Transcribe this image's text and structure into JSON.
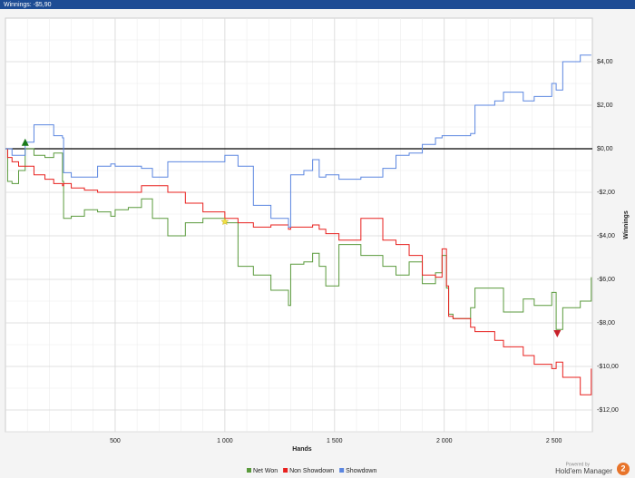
{
  "window_title": "Winnings: -$5,90",
  "chart_data": {
    "type": "line",
    "step": true,
    "zero_line": true,
    "grid": true,
    "xlabel": "Hands",
    "ylabel": "Winnings",
    "xlim": [
      0,
      2675
    ],
    "ylim": [
      -13,
      6
    ],
    "xticks": [
      500,
      {
        "value": 1000,
        "label": "1 000"
      },
      {
        "value": 1500,
        "label": "1 500"
      },
      {
        "value": 2000,
        "label": "2 000"
      },
      {
        "value": 2500,
        "label": "2 500"
      }
    ],
    "yticks": [
      {
        "value": 4,
        "label": "$4,00"
      },
      {
        "value": 2,
        "label": "$2,00"
      },
      {
        "value": 0,
        "label": "$0,00"
      },
      {
        "value": -2,
        "label": "-$2,00"
      },
      {
        "value": -4,
        "label": "-$4,00"
      },
      {
        "value": -6,
        "label": "-$6,00"
      },
      {
        "value": -8,
        "label": "-$8,00"
      },
      {
        "value": -10,
        "label": "-$10,00"
      },
      {
        "value": -12,
        "label": "-$12,00"
      }
    ],
    "x_minor_ticks": [
      100,
      200,
      300,
      400,
      500,
      600,
      700,
      800,
      900,
      1000,
      1100,
      1200,
      1300,
      1400,
      1500,
      1600,
      1700,
      1800,
      1900,
      2000,
      2100,
      2200,
      2300,
      2400,
      2500,
      2600
    ],
    "y_minor_ticks": [
      -13,
      -12,
      -11,
      -10,
      -9,
      -8,
      -7,
      -6,
      -5,
      -4,
      -3,
      -2,
      -1,
      1,
      2,
      3,
      4,
      5
    ],
    "x": [
      0,
      10,
      30,
      60,
      90,
      130,
      180,
      220,
      260,
      265,
      300,
      360,
      420,
      480,
      500,
      560,
      620,
      670,
      740,
      820,
      900,
      1000,
      1060,
      1130,
      1210,
      1290,
      1300,
      1360,
      1400,
      1430,
      1460,
      1520,
      1620,
      1720,
      1780,
      1840,
      1900,
      1960,
      1990,
      2010,
      2020,
      2040,
      2120,
      2140,
      2230,
      2270,
      2360,
      2410,
      2490,
      2510,
      2540,
      2620,
      2670
    ],
    "series": [
      {
        "name": "Net Won",
        "color": "#5a9a3c",
        "values": [
          0,
          -1.5,
          -1.6,
          -1,
          0,
          -0.3,
          -0.4,
          -0.2,
          -1.5,
          -3.2,
          -3.1,
          -2.8,
          -2.9,
          -3.1,
          -2.8,
          -2.7,
          -2.3,
          -3.2,
          -4,
          -3.4,
          -3.2,
          -3.4,
          -5.4,
          -5.8,
          -6.5,
          -7.2,
          -5.3,
          -5.2,
          -4.8,
          -5.4,
          -6.3,
          -4.4,
          -4.9,
          -5.4,
          -5.8,
          -5.2,
          -6.2,
          -5.7,
          -4.9,
          -6.4,
          -7.6,
          -7.8,
          -7.3,
          -6.4,
          -6.4,
          -7.5,
          -6.9,
          -7.2,
          -6.6,
          -8.3,
          -7.3,
          -7.0,
          -5.9
        ]
      },
      {
        "name": "Non Showdown",
        "color": "#e8201e",
        "values": [
          0,
          -0.4,
          -0.6,
          -0.8,
          -0.8,
          -1.2,
          -1.4,
          -1.6,
          -1.7,
          -1.6,
          -1.8,
          -1.9,
          -2.0,
          -2.0,
          -2.0,
          -2.0,
          -1.7,
          -1.7,
          -2.0,
          -2.5,
          -2.9,
          -3.2,
          -3.4,
          -3.6,
          -3.5,
          -3.7,
          -3.6,
          -3.6,
          -3.5,
          -3.7,
          -3.9,
          -4.2,
          -3.2,
          -4.2,
          -4.4,
          -4.9,
          -5.8,
          -5.9,
          -4.6,
          -6.3,
          -7.7,
          -7.8,
          -8.2,
          -8.4,
          -8.8,
          -9.1,
          -9.5,
          -9.9,
          -10.1,
          -9.8,
          -10.5,
          -11.3,
          -10.1
        ]
      },
      {
        "name": "Showdown",
        "color": "#5b86e0",
        "values": [
          0,
          0,
          -0.3,
          -0.3,
          0.3,
          1.1,
          1.1,
          0.6,
          0.5,
          -1.1,
          -1.3,
          -1.3,
          -0.8,
          -0.7,
          -0.8,
          -0.8,
          -0.9,
          -1.3,
          -0.6,
          -0.6,
          -0.6,
          -0.3,
          -0.8,
          -2.6,
          -3.2,
          -3.6,
          -1.2,
          -1.0,
          -0.5,
          -1.3,
          -1.2,
          -1.4,
          -1.3,
          -0.9,
          -0.3,
          -0.2,
          0.2,
          0.5,
          0.6,
          0.6,
          0.6,
          0.6,
          0.7,
          2.0,
          2.2,
          2.6,
          2.2,
          2.4,
          3.0,
          2.7,
          4.0,
          4.3,
          4.3
        ]
      }
    ],
    "markers": [
      {
        "x": 90,
        "y": 0.3,
        "color": "#1a7a1a",
        "shape": "triangle-up"
      },
      {
        "x": 2515,
        "y": -8.5,
        "color": "#c8202a",
        "shape": "triangle-down"
      },
      {
        "x": 1000,
        "y": -3.35,
        "color": "#f0e040",
        "shape": "star"
      }
    ]
  },
  "branding": {
    "line1": "Powered by",
    "line2": "Hold'em Manager",
    "badge": "2"
  }
}
